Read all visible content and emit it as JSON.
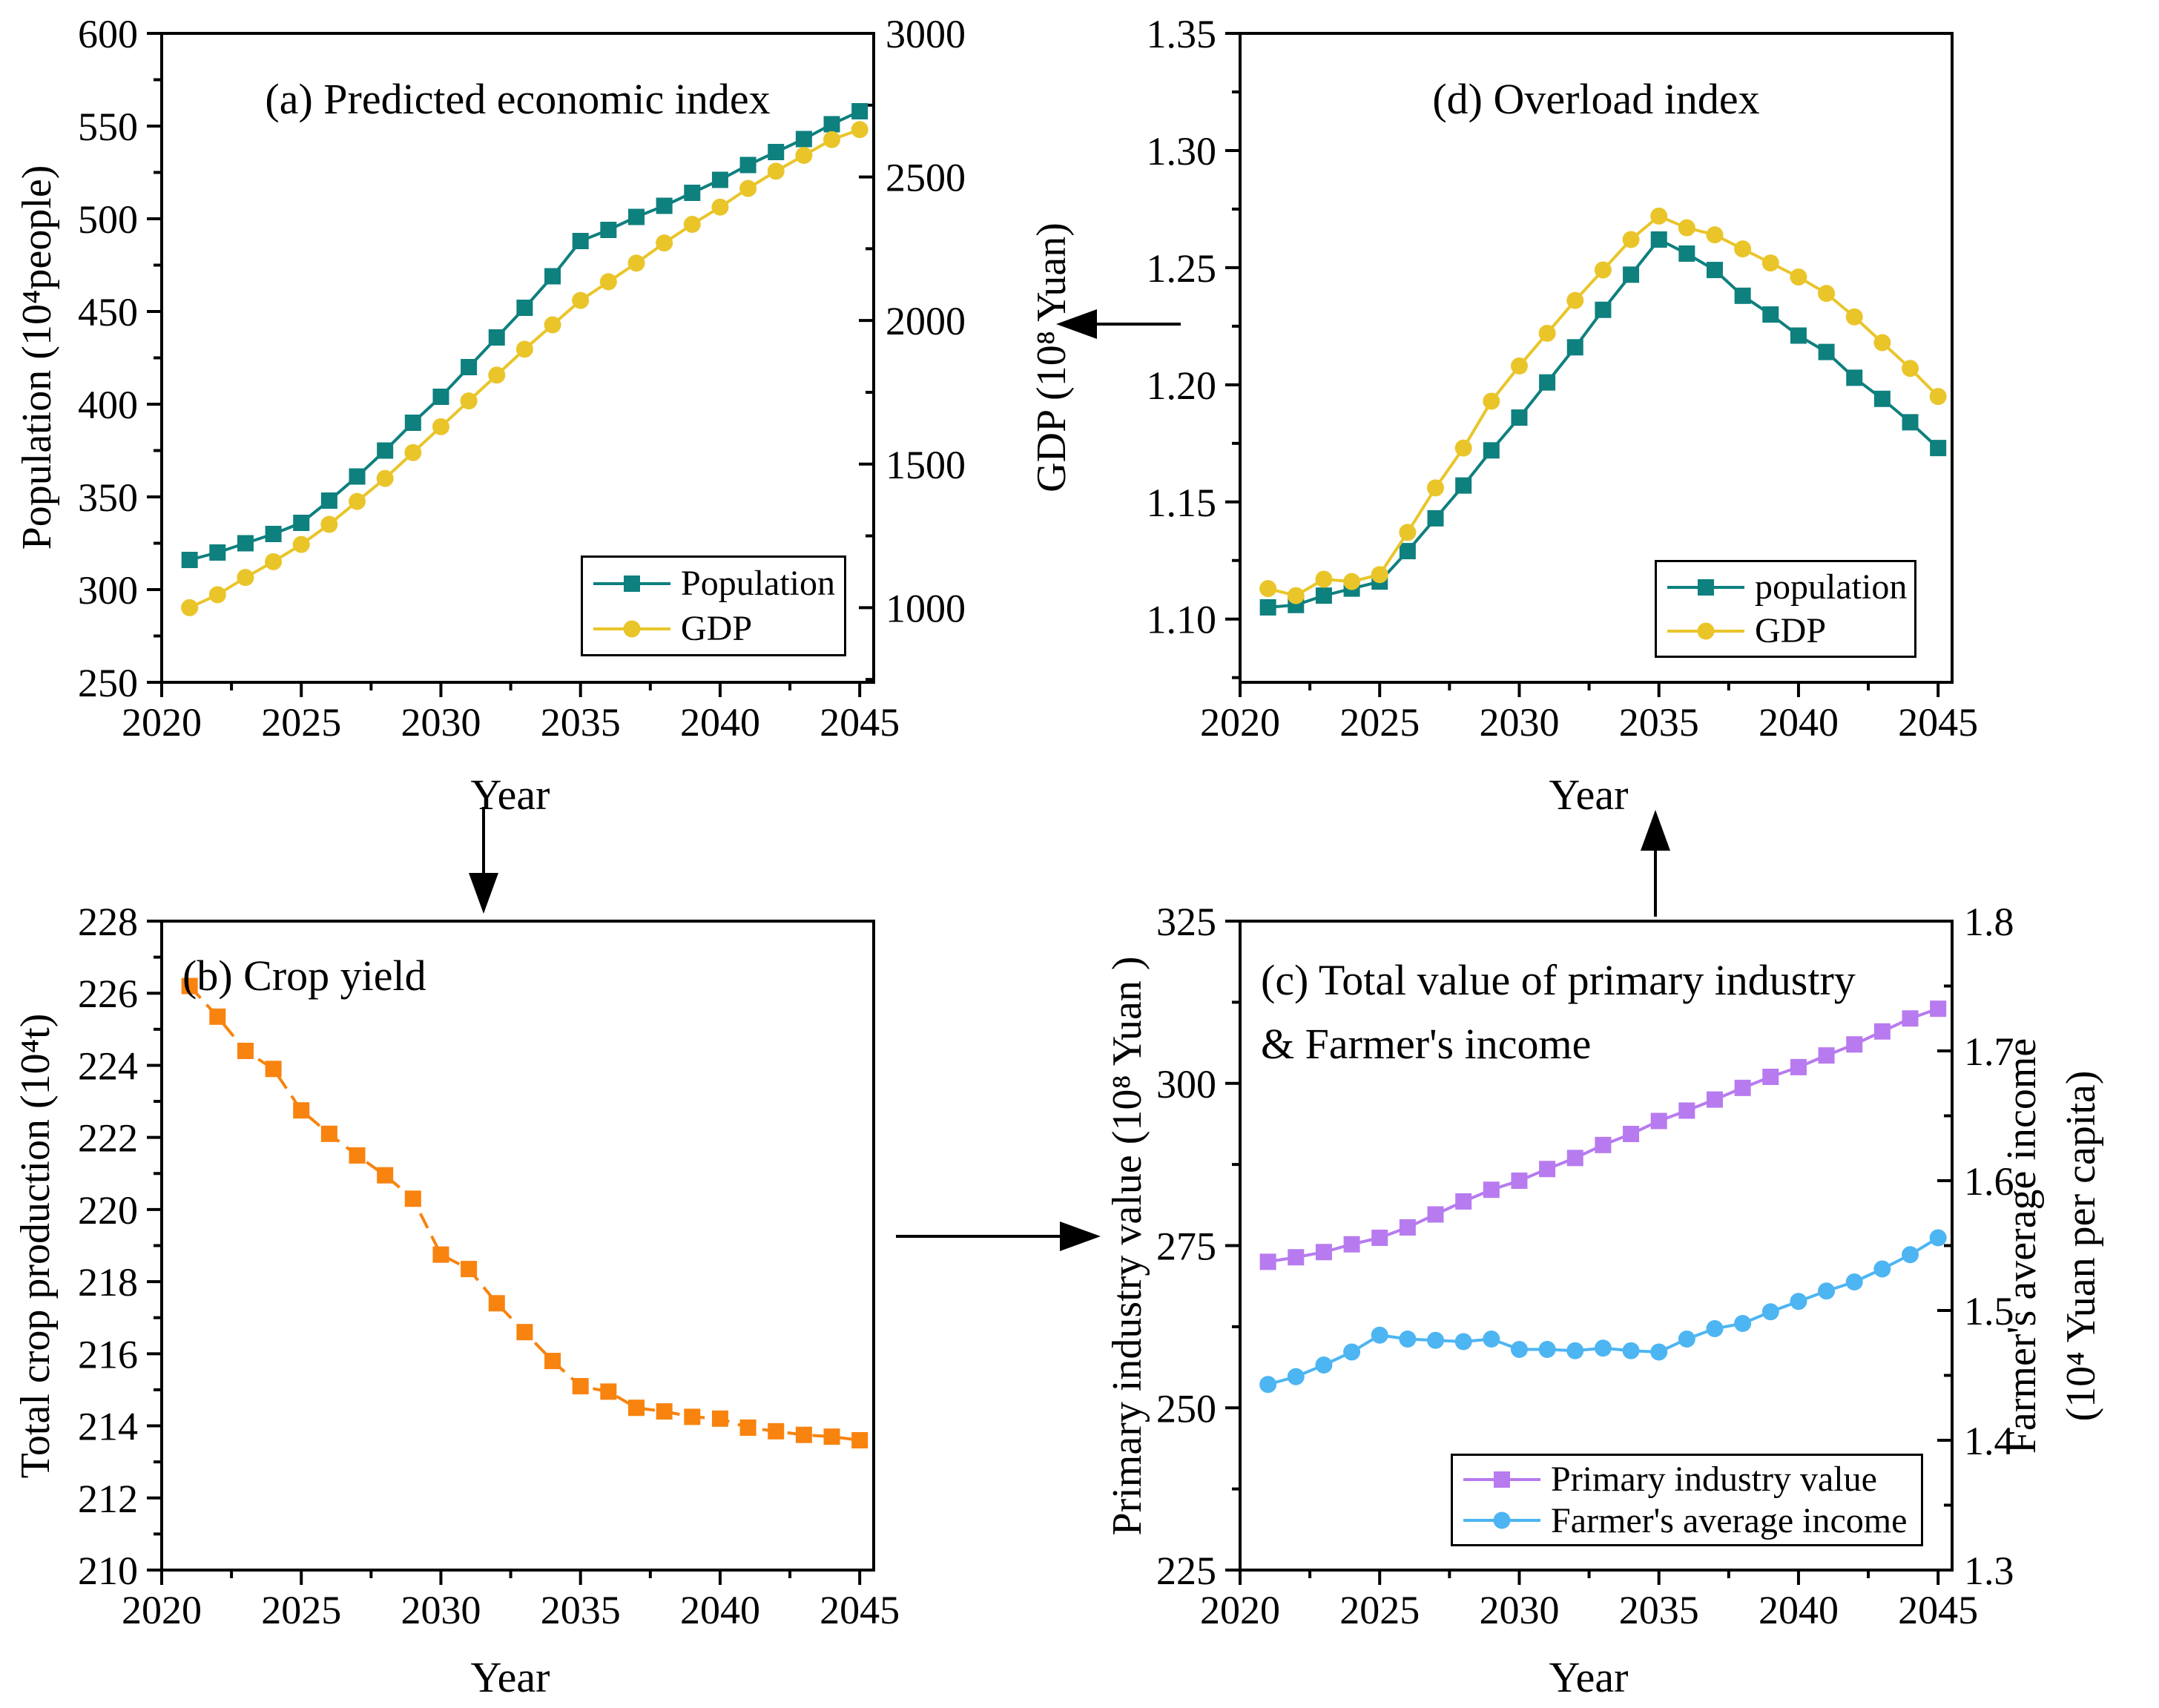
{
  "colors": {
    "population": "#0e807e",
    "gdp": "#e9c52a",
    "crop": "#f8830f",
    "primary_industry": "#b77bef",
    "farmer_income": "#4db5f2",
    "axis": "#000000",
    "background": "#ffffff"
  },
  "years": [
    2021,
    2022,
    2023,
    2024,
    2025,
    2026,
    2027,
    2028,
    2029,
    2030,
    2031,
    2032,
    2033,
    2034,
    2035,
    2036,
    2037,
    2038,
    2039,
    2040,
    2041,
    2042,
    2043,
    2044,
    2045
  ],
  "chart_data": [
    {
      "id": "a",
      "type": "line",
      "title": "(a) Predicted economic index",
      "xlabel": "Year",
      "xlim": [
        2020,
        2045.5
      ],
      "x_ticks": [
        2020,
        2025,
        2030,
        2035,
        2040,
        2045
      ],
      "x_tick_labels": [
        "2020",
        "2025",
        "2030",
        "2035",
        "2040",
        "2045"
      ],
      "axes": {
        "left": {
          "label": "Population (10⁴people)",
          "lim": [
            250,
            600
          ],
          "ticks": [
            250,
            300,
            350,
            400,
            450,
            500,
            550,
            600
          ],
          "labels": [
            "250",
            "300",
            "350",
            "400",
            "450",
            "500",
            "550",
            "600"
          ]
        },
        "right": {
          "label": "GDP (10⁸ Yuan)",
          "lim": [
            740,
            3000
          ],
          "ticks": [
            1000,
            1500,
            2000,
            2500,
            3000
          ],
          "labels": [
            "1000",
            "1500",
            "2000",
            "2500",
            "3000"
          ]
        }
      },
      "series": [
        {
          "name": "Population",
          "axis": "left",
          "color_key": "population",
          "marker": "square",
          "linestyle": "solid",
          "values": [
            316,
            320,
            325,
            330,
            336,
            348,
            361,
            375,
            390,
            404,
            420,
            436,
            452,
            469,
            488,
            494,
            501,
            507,
            514,
            521,
            529,
            536,
            543,
            551,
            558
          ]
        },
        {
          "name": "GDP",
          "axis": "right",
          "color_key": "gdp",
          "marker": "circle",
          "linestyle": "solid",
          "values": [
            1000,
            1045,
            1105,
            1160,
            1220,
            1290,
            1370,
            1450,
            1540,
            1630,
            1720,
            1810,
            1900,
            1985,
            2070,
            2135,
            2200,
            2270,
            2335,
            2395,
            2460,
            2520,
            2575,
            2630,
            2665
          ]
        }
      ]
    },
    {
      "id": "d",
      "type": "line",
      "title": "(d) Overload index",
      "xlabel": "Year",
      "xlim": [
        2020,
        2045.5
      ],
      "x_ticks": [
        2020,
        2025,
        2030,
        2035,
        2040,
        2045
      ],
      "x_tick_labels": [
        "2020",
        "2025",
        "2030",
        "2035",
        "2040",
        "2045"
      ],
      "axes": {
        "left": {
          "label": "",
          "lim": [
            1.073,
            1.35
          ],
          "ticks": [
            1.1,
            1.15,
            1.2,
            1.25,
            1.3,
            1.35
          ],
          "labels": [
            "1.10",
            "1.15",
            "1.20",
            "1.25",
            "1.30",
            "1.35"
          ]
        }
      },
      "series": [
        {
          "name": "population",
          "axis": "left",
          "color_key": "population",
          "marker": "square",
          "linestyle": "solid",
          "values": [
            1.105,
            1.106,
            1.11,
            1.113,
            1.116,
            1.129,
            1.143,
            1.157,
            1.172,
            1.186,
            1.201,
            1.216,
            1.232,
            1.247,
            1.262,
            1.256,
            1.249,
            1.238,
            1.23,
            1.221,
            1.214,
            1.203,
            1.194,
            1.184,
            1.173
          ]
        },
        {
          "name": "GDP",
          "axis": "left",
          "color_key": "gdp",
          "marker": "circle",
          "linestyle": "solid",
          "values": [
            1.113,
            1.11,
            1.117,
            1.116,
            1.119,
            1.137,
            1.156,
            1.173,
            1.193,
            1.208,
            1.222,
            1.236,
            1.249,
            1.262,
            1.272,
            1.267,
            1.264,
            1.258,
            1.252,
            1.246,
            1.239,
            1.229,
            1.218,
            1.207,
            1.195
          ]
        }
      ]
    },
    {
      "id": "b",
      "type": "line",
      "title": "(b) Crop yield",
      "xlabel": "Year",
      "xlim": [
        2020,
        2045.5
      ],
      "x_ticks": [
        2020,
        2025,
        2030,
        2035,
        2040,
        2045
      ],
      "x_tick_labels": [
        "2020",
        "2025",
        "2030",
        "2035",
        "2040",
        "2045"
      ],
      "axes": {
        "left": {
          "label": "Total crop production (10⁴t)",
          "lim": [
            210,
            228
          ],
          "ticks": [
            210,
            212,
            214,
            216,
            218,
            220,
            222,
            224,
            226,
            228
          ],
          "labels": [
            "210",
            "212",
            "214",
            "216",
            "218",
            "220",
            "222",
            "224",
            "226",
            "228"
          ]
        }
      },
      "series": [
        {
          "name": "Total crop production",
          "axis": "left",
          "color_key": "crop",
          "marker": "square",
          "linestyle": "dashed",
          "values": [
            226.2,
            225.35,
            224.4,
            223.9,
            222.75,
            222.1,
            221.5,
            220.95,
            220.3,
            218.75,
            218.35,
            217.4,
            216.6,
            215.8,
            215.1,
            214.95,
            214.5,
            214.4,
            214.25,
            214.2,
            213.95,
            213.85,
            213.75,
            213.7,
            213.6
          ]
        }
      ]
    },
    {
      "id": "c",
      "type": "line",
      "title_lines": [
        "(c) Total value of primary industry",
        "& Farmer's income"
      ],
      "xlabel": "Year",
      "xlim": [
        2020,
        2045.5
      ],
      "x_ticks": [
        2020,
        2025,
        2030,
        2035,
        2040,
        2045
      ],
      "x_tick_labels": [
        "2020",
        "2025",
        "2030",
        "2035",
        "2040",
        "2045"
      ],
      "axes": {
        "left": {
          "label": "Primary industry value (10⁸ Yuan )",
          "lim": [
            225,
            325
          ],
          "ticks": [
            225,
            250,
            275,
            300,
            325
          ],
          "labels": [
            "225",
            "250",
            "275",
            "300",
            "325"
          ]
        },
        "right": {
          "label_lines": [
            "Farmer's average income",
            "(10⁴ Yuan per capita)"
          ],
          "lim": [
            1.3,
            1.8
          ],
          "ticks": [
            1.3,
            1.4,
            1.5,
            1.6,
            1.7,
            1.8
          ],
          "labels": [
            "1.3",
            "1.4",
            "1.5",
            "1.6",
            "1.7",
            "1.8"
          ]
        }
      },
      "series": [
        {
          "name": "Primary industry value",
          "axis": "left",
          "color_key": "primary_industry",
          "marker": "square",
          "linestyle": "solid",
          "values": [
            272.5,
            273.2,
            274.0,
            275.2,
            276.2,
            277.8,
            279.8,
            281.8,
            283.6,
            285.0,
            286.8,
            288.5,
            290.5,
            292.2,
            294.2,
            295.8,
            297.5,
            299.3,
            301.0,
            302.5,
            304.3,
            306.0,
            308.0,
            310.0,
            311.5
          ]
        },
        {
          "name": "Farmer's average income",
          "axis": "right",
          "color_key": "farmer_income",
          "marker": "circle",
          "linestyle": "solid",
          "values": [
            1.443,
            1.449,
            1.458,
            1.468,
            1.481,
            1.478,
            1.477,
            1.476,
            1.478,
            1.47,
            1.47,
            1.469,
            1.471,
            1.469,
            1.468,
            1.478,
            1.486,
            1.49,
            1.499,
            1.507,
            1.515,
            1.522,
            1.532,
            1.543,
            1.556
          ]
        }
      ]
    }
  ],
  "arrows": [
    {
      "name": "arrow-d-to-a",
      "direction": "left"
    },
    {
      "name": "arrow-a-to-b",
      "direction": "down"
    },
    {
      "name": "arrow-b-to-c",
      "direction": "right"
    },
    {
      "name": "arrow-c-to-d",
      "direction": "up"
    }
  ]
}
